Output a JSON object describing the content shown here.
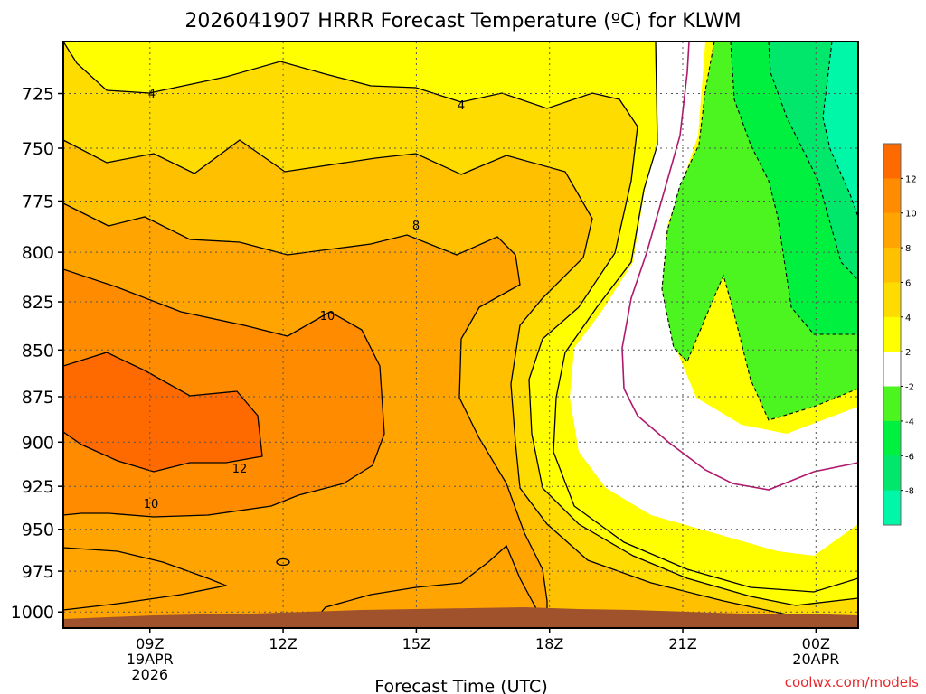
{
  "chart_data": {
    "type": "contour",
    "title": "2026041907 HRRR Forecast Temperature (ºC) for KLWM",
    "xlabel": "Forecast Time (UTC)",
    "ylabel": "",
    "watermark": "coolwx.com/models",
    "x_ticks": [
      {
        "hour": 2,
        "lines": [
          "09Z",
          "19APR",
          "2026"
        ]
      },
      {
        "hour": 5,
        "lines": [
          "12Z"
        ]
      },
      {
        "hour": 8,
        "lines": [
          "15Z"
        ]
      },
      {
        "hour": 11,
        "lines": [
          "18Z"
        ]
      },
      {
        "hour": 14,
        "lines": [
          "21Z"
        ]
      },
      {
        "hour": 17,
        "lines": [
          "00Z",
          "20APR"
        ]
      }
    ],
    "xlim": [
      0.05,
      17.95
    ],
    "y_ticks": [
      725,
      750,
      775,
      800,
      825,
      850,
      875,
      900,
      925,
      950,
      975,
      1000
    ],
    "ylim": [
      1010,
      702
    ],
    "y_scale": "log-pressure",
    "grid": true,
    "colorbar": {
      "bins": [
        {
          "from": -10,
          "to": -8,
          "color": "#00f7a8"
        },
        {
          "from": -8,
          "to": -6,
          "color": "#00e76c"
        },
        {
          "from": -6,
          "to": -4,
          "color": "#00f040"
        },
        {
          "from": -4,
          "to": -2,
          "color": "#4cf420"
        },
        {
          "from": -2,
          "to": 2,
          "color": "#ffffff"
        },
        {
          "from": 2,
          "to": 4,
          "color": "#ffff00"
        },
        {
          "from": 4,
          "to": 6,
          "color": "#ffdc00"
        },
        {
          "from": 6,
          "to": 8,
          "color": "#ffc000"
        },
        {
          "from": 8,
          "to": 10,
          "color": "#ffa400"
        },
        {
          "from": 10,
          "to": 12,
          "color": "#ff8c00"
        },
        {
          "from": 12,
          "to": 14,
          "color": "#ff6a00"
        }
      ],
      "labels": [
        "12",
        "10",
        "8",
        "6",
        "4",
        "2",
        "-2",
        "-4",
        "-6",
        "-8"
      ]
    },
    "contour_labels": [
      "4",
      "4",
      "8",
      "10",
      "12",
      "10"
    ],
    "ground_color": "#a0522d"
  }
}
